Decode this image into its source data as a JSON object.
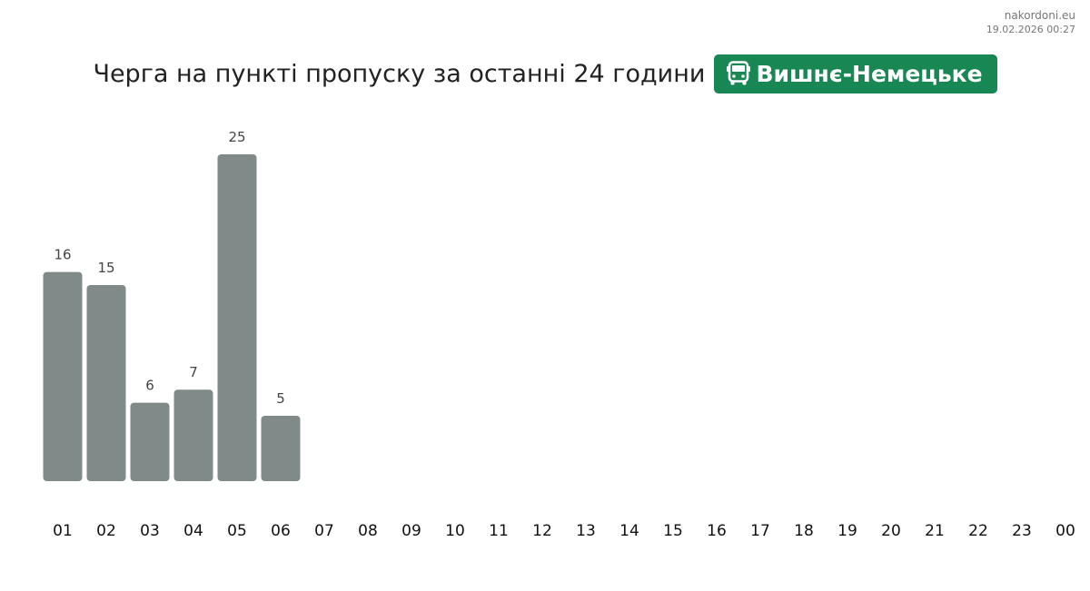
{
  "watermark": {
    "site": "nakordoni.eu",
    "timestamp": "19.02.2026 00:27"
  },
  "header": {
    "title": "Черга на пункті пропуску за останні 24 години",
    "checkpoint_name": "Вишнє-Немецьке",
    "checkpoint_icon": "bus-icon",
    "badge_color": "#198754"
  },
  "chart_data": {
    "type": "bar",
    "title": "",
    "xlabel": "",
    "ylabel": "",
    "categories": [
      "01",
      "02",
      "03",
      "04",
      "05",
      "06",
      "07",
      "08",
      "09",
      "10",
      "11",
      "12",
      "13",
      "14",
      "15",
      "16",
      "17",
      "18",
      "19",
      "20",
      "21",
      "22",
      "23",
      "00"
    ],
    "values": [
      16,
      15,
      6,
      7,
      25,
      5,
      null,
      null,
      null,
      null,
      null,
      null,
      null,
      null,
      null,
      null,
      null,
      null,
      null,
      null,
      null,
      null,
      null,
      null
    ],
    "ylim": [
      0,
      25
    ],
    "grid": false,
    "data_labels": true,
    "bar_color": "#7f8a89"
  }
}
